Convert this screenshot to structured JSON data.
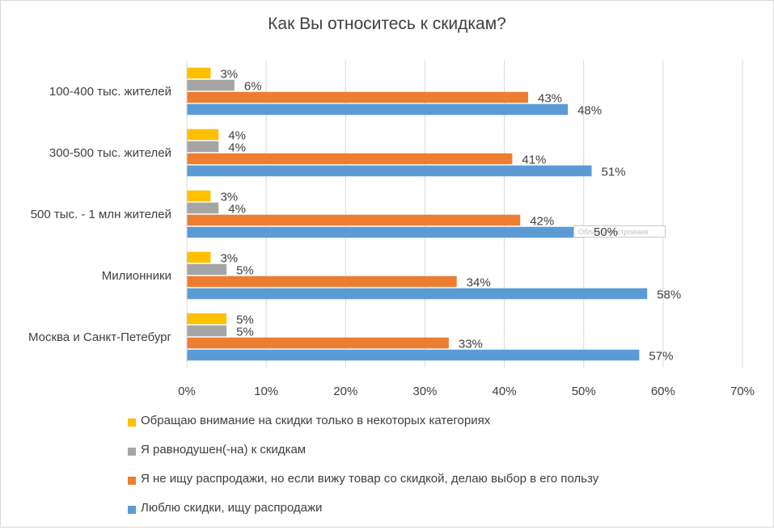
{
  "chart_data": {
    "type": "bar",
    "orientation": "horizontal",
    "title": "Как Вы относитесь к скидкам?",
    "categories": [
      "100-400 тыс. жителей",
      "300-500 тыс. жителей",
      "500 тыс. - 1 млн жителей",
      "Милионники",
      "Москва и Санкт-Петебург"
    ],
    "series": [
      {
        "name": "Обращаю внимание на скидки только в некоторых категориях",
        "color": "#FFC000",
        "values": [
          3,
          4,
          3,
          3,
          5
        ]
      },
      {
        "name": "Я равнодушен(-на) к скидкам",
        "color": "#A5A5A5",
        "values": [
          6,
          4,
          4,
          5,
          5
        ]
      },
      {
        "name": "Я не ищу распродажи, но если вижу товар со скидкой, делаю выбор в его пользу",
        "color": "#ED7D31",
        "values": [
          43,
          41,
          42,
          34,
          33
        ]
      },
      {
        "name": "Люблю скидки, ищу распродажи",
        "color": "#5B9BD5",
        "values": [
          48,
          51,
          50,
          58,
          57
        ]
      }
    ],
    "xlim": [
      0,
      70
    ],
    "xticks": [
      0,
      10,
      20,
      30,
      40,
      50,
      60,
      70
    ],
    "tick_suffix": "%",
    "grid": true,
    "legend_position": "bottom"
  },
  "overlay": {
    "tooltip_text": "Область построения",
    "tooltip_value": "50%"
  }
}
